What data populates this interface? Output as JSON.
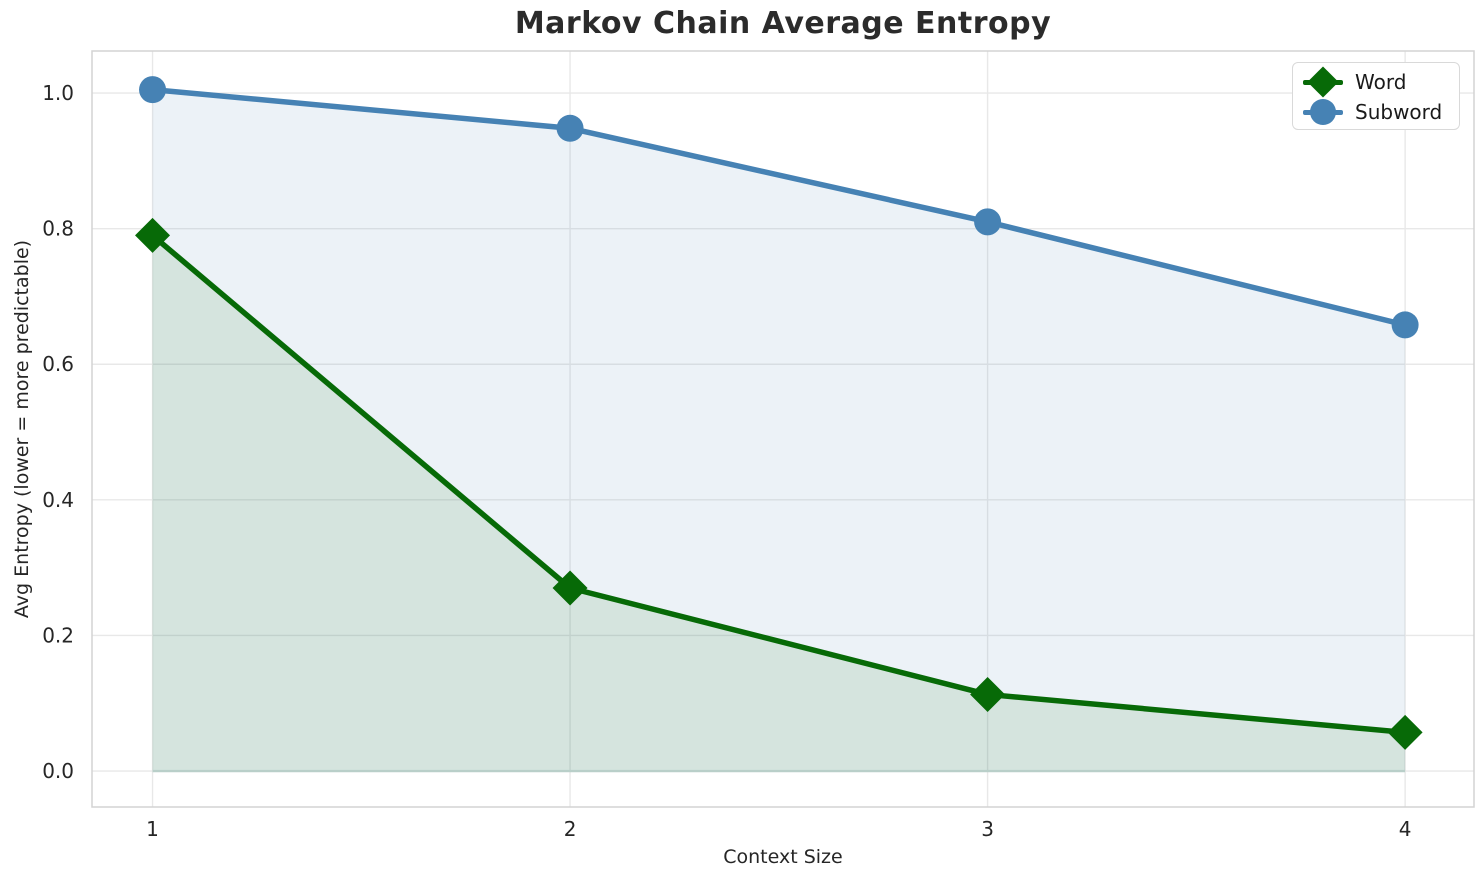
{
  "chart_data": {
    "type": "line",
    "title": "Markov Chain Average Entropy",
    "xlabel": "Context Size",
    "ylabel": "Avg Entropy (lower = more predictable)",
    "x": [
      1,
      2,
      3,
      4
    ],
    "series": [
      {
        "name": "Word",
        "color": "#076a07",
        "marker": "diamond",
        "fill_opacity": 0.1,
        "values": [
          0.79,
          0.27,
          0.113,
          0.057
        ]
      },
      {
        "name": "Subword",
        "color": "#4682b4",
        "marker": "circle",
        "fill_opacity": 0.1,
        "values": [
          1.005,
          0.948,
          0.81,
          0.658
        ]
      }
    ],
    "area_fill": true,
    "area_baseline": 0,
    "baseline_edge_color": "#b9cfc9",
    "xlim": [
      0.855,
      4.165
    ],
    "ylim": [
      -0.053,
      1.062
    ],
    "xticks": [
      {
        "value": 1,
        "label": "1"
      },
      {
        "value": 2,
        "label": "2"
      },
      {
        "value": 3,
        "label": "3"
      },
      {
        "value": 4,
        "label": "4"
      }
    ],
    "yticks": [
      {
        "value": 0.0,
        "label": "0.0"
      },
      {
        "value": 0.2,
        "label": "0.2"
      },
      {
        "value": 0.4,
        "label": "0.4"
      },
      {
        "value": 0.6,
        "label": "0.6"
      },
      {
        "value": 0.8,
        "label": "0.8"
      },
      {
        "value": 1.0,
        "label": "1.0"
      }
    ],
    "grid": true,
    "grid_color": "#e8e8e8",
    "spine_color": "#d3d3d3",
    "background": "#ffffff",
    "legend_position": "upper-right",
    "legend": [
      {
        "label": "Word"
      },
      {
        "label": "Subword"
      }
    ]
  }
}
